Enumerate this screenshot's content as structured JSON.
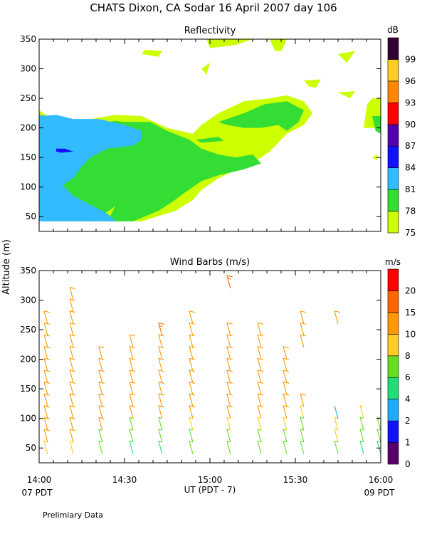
{
  "header": {
    "title": "CHATS Dixon, CA  Sodar  16 April 2007  day 106",
    "y_label": "Altitude (m)",
    "x_label": "UT  (PDT - 7)",
    "x_left_note": "07 PDT",
    "x_right_note": "09 PDT",
    "footer": "Prelimiary Data"
  },
  "chart_data": [
    {
      "type": "heatmap",
      "title": "Reflectivity",
      "legend_title": "dB",
      "x_ticks": [
        "14:00",
        "14:30",
        "15:00",
        "15:30",
        "16:00"
      ],
      "x_range_hours": [
        14.0,
        16.0
      ],
      "ylim": [
        25,
        350
      ],
      "y_ticks": [
        50,
        100,
        150,
        200,
        250,
        300,
        350
      ],
      "legend_levels": [
        75,
        78,
        81,
        84,
        87,
        90,
        93,
        96,
        99
      ],
      "legend_colors": [
        "#ccff00",
        "#33dd33",
        "#33bbff",
        "#1111ff",
        "#5500aa",
        "#ff0000",
        "#ff8800",
        "#ffcc22",
        "#330033"
      ],
      "regions": [
        {
          "level": 75,
          "points": [
            [
              14.0,
              230
            ],
            [
              14.1,
              210
            ],
            [
              14.3,
              215
            ],
            [
              14.45,
              222
            ],
            [
              14.6,
              220
            ],
            [
              14.75,
              200
            ],
            [
              14.9,
              190
            ],
            [
              14.95,
              205
            ],
            [
              15.05,
              225
            ],
            [
              15.2,
              245
            ],
            [
              15.35,
              250
            ],
            [
              15.45,
              255
            ],
            [
              15.55,
              245
            ],
            [
              15.6,
              225
            ],
            [
              15.55,
              205
            ],
            [
              15.45,
              190
            ],
            [
              15.4,
              175
            ],
            [
              15.35,
              160
            ],
            [
              15.3,
              150
            ],
            [
              15.2,
              135
            ],
            [
              15.05,
              115
            ],
            [
              14.95,
              95
            ],
            [
              14.9,
              78
            ],
            [
              14.8,
              60
            ],
            [
              14.6,
              42
            ],
            [
              14.0,
              42
            ]
          ]
        },
        {
          "level": 75,
          "points": [
            [
              14.6,
              325
            ],
            [
              14.7,
              320
            ],
            [
              14.72,
              330
            ],
            [
              14.62,
              332
            ]
          ]
        },
        {
          "level": 75,
          "points": [
            [
              14.95,
              300
            ],
            [
              14.98,
              290
            ],
            [
              15.0,
              310
            ]
          ]
        },
        {
          "level": 75,
          "points": [
            [
              14.98,
              350
            ],
            [
              15.25,
              350
            ],
            [
              15.15,
              340
            ],
            [
              15.0,
              335
            ]
          ]
        },
        {
          "level": 75,
          "points": [
            [
              15.35,
              350
            ],
            [
              15.45,
              350
            ],
            [
              15.42,
              330
            ],
            [
              15.38,
              330
            ]
          ]
        },
        {
          "level": 75,
          "points": [
            [
              15.55,
              280
            ],
            [
              15.65,
              282
            ],
            [
              15.62,
              268
            ],
            [
              15.58,
              270
            ]
          ]
        },
        {
          "level": 75,
          "points": [
            [
              15.75,
              325
            ],
            [
              15.85,
              330
            ],
            [
              15.8,
              310
            ]
          ]
        },
        {
          "level": 75,
          "points": [
            [
              15.75,
              260
            ],
            [
              15.85,
              262
            ],
            [
              15.82,
              250
            ]
          ]
        },
        {
          "level": 75,
          "points": [
            [
              15.9,
              200
            ],
            [
              16.0,
              200
            ],
            [
              16.0,
              250
            ],
            [
              15.95,
              250
            ],
            [
              15.92,
              240
            ]
          ]
        },
        {
          "level": 75,
          "points": [
            [
              15.95,
              150
            ],
            [
              15.98,
              155
            ],
            [
              15.98,
              145
            ]
          ]
        },
        {
          "level": 78,
          "points": [
            [
              14.0,
              222
            ],
            [
              14.1,
              205
            ],
            [
              14.3,
              205
            ],
            [
              14.45,
              212
            ],
            [
              14.6,
              205
            ],
            [
              14.65,
              190
            ],
            [
              14.7,
              175
            ],
            [
              14.62,
              150
            ],
            [
              14.55,
              110
            ],
            [
              14.5,
              80
            ],
            [
              14.42,
              62
            ],
            [
              14.3,
              42
            ],
            [
              14.0,
              42
            ]
          ]
        },
        {
          "level": 78,
          "points": [
            [
              14.5,
              210
            ],
            [
              14.65,
              210
            ],
            [
              14.75,
              195
            ],
            [
              14.88,
              180
            ],
            [
              14.95,
              165
            ],
            [
              15.05,
              155
            ],
            [
              15.15,
              150
            ],
            [
              15.25,
              155
            ],
            [
              15.3,
              140
            ],
            [
              15.2,
              130
            ],
            [
              15.05,
              120
            ],
            [
              14.95,
              110
            ],
            [
              14.85,
              90
            ],
            [
              14.78,
              75
            ],
            [
              14.7,
              60
            ],
            [
              14.55,
              42
            ],
            [
              14.4,
              42
            ],
            [
              14.45,
              70
            ],
            [
              14.5,
              100
            ],
            [
              14.55,
              150
            ]
          ]
        },
        {
          "level": 78,
          "points": [
            [
              15.05,
              210
            ],
            [
              15.2,
              225
            ],
            [
              15.32,
              240
            ],
            [
              15.45,
              245
            ],
            [
              15.55,
              230
            ],
            [
              15.52,
              210
            ],
            [
              15.45,
              195
            ],
            [
              15.4,
              205
            ],
            [
              15.3,
              200
            ],
            [
              15.2,
              200
            ],
            [
              15.1,
              205
            ]
          ]
        },
        {
          "level": 78,
          "points": [
            [
              14.92,
              180
            ],
            [
              15.05,
              185
            ],
            [
              15.08,
              178
            ],
            [
              14.95,
              175
            ]
          ]
        },
        {
          "level": 78,
          "points": [
            [
              15.95,
              220
            ],
            [
              16.0,
              220
            ],
            [
              16.0,
              190
            ],
            [
              15.97,
              195
            ]
          ]
        },
        {
          "level": 81,
          "points": [
            [
              14.0,
              220
            ],
            [
              14.1,
              210
            ],
            [
              14.15,
              205
            ],
            [
              14.25,
              200
            ],
            [
              14.3,
              185
            ],
            [
              14.25,
              170
            ],
            [
              14.15,
              160
            ],
            [
              14.05,
              145
            ],
            [
              14.0,
              120
            ],
            [
              14.0,
              42
            ],
            [
              14.05,
              42
            ],
            [
              14.1,
              70
            ],
            [
              14.12,
              100
            ],
            [
              14.2,
              115
            ],
            [
              14.25,
              135
            ],
            [
              14.3,
              150
            ],
            [
              14.4,
              165
            ],
            [
              14.55,
              170
            ],
            [
              14.6,
              180
            ],
            [
              14.6,
              195
            ],
            [
              14.5,
              205
            ],
            [
              14.35,
              215
            ],
            [
              14.2,
              215
            ],
            [
              14.1,
              222
            ]
          ]
        },
        {
          "level": 81,
          "points": [
            [
              14.0,
              222
            ],
            [
              14.15,
              215
            ],
            [
              14.35,
              210
            ],
            [
              14.45,
              200
            ],
            [
              14.47,
              185
            ],
            [
              14.4,
              175
            ],
            [
              14.3,
              165
            ],
            [
              14.2,
              155
            ],
            [
              14.15,
              140
            ],
            [
              14.1,
              120
            ],
            [
              14.15,
              100
            ],
            [
              14.2,
              85
            ],
            [
              14.3,
              70
            ],
            [
              14.4,
              55
            ],
            [
              14.45,
              42
            ],
            [
              14.0,
              42
            ]
          ]
        },
        {
          "level": 84,
          "points": [
            [
              14.1,
              165
            ],
            [
              14.15,
              165
            ],
            [
              14.2,
              160
            ],
            [
              14.13,
              158
            ],
            [
              14.1,
              160
            ]
          ]
        }
      ]
    },
    {
      "type": "scatter",
      "title": "Wind Barbs (m/s)",
      "legend_title": "m/s",
      "x_ticks": [
        "14:00",
        "14:30",
        "15:00",
        "15:30",
        "16:00"
      ],
      "x_range_hours": [
        14.0,
        16.0
      ],
      "ylim": [
        25,
        350
      ],
      "y_ticks": [
        50,
        100,
        150,
        200,
        250,
        300,
        350
      ],
      "legend_levels": [
        0,
        1,
        2,
        4,
        6,
        8,
        10,
        15,
        20
      ],
      "legend_colors": [
        "#550066",
        "#1111ff",
        "#22aaff",
        "#22dd77",
        "#66dd22",
        "#ffcc22",
        "#ff9900",
        "#ff6600",
        "#ff0000"
      ],
      "columns": [
        {
          "t": 14.05,
          "heights": [
            40,
            60,
            80,
            100,
            120,
            140,
            160,
            180,
            200,
            220,
            240,
            260
          ],
          "speeds": [
            9,
            10,
            11,
            11,
            12,
            11,
            12,
            11,
            11,
            12,
            11,
            11
          ]
        },
        {
          "t": 14.2,
          "heights": [
            40,
            60,
            80,
            100,
            120,
            140,
            160,
            180,
            200,
            220,
            240,
            260,
            280,
            300
          ],
          "speeds": [
            9,
            10,
            11,
            11,
            12,
            12,
            12,
            12,
            12,
            12,
            11,
            12,
            12,
            11
          ]
        },
        {
          "t": 14.37,
          "heights": [
            40,
            60,
            80,
            100,
            120,
            140,
            160,
            180,
            200
          ],
          "speeds": [
            6,
            7,
            11,
            12,
            12,
            12,
            12,
            12,
            12
          ]
        },
        {
          "t": 14.55,
          "heights": [
            40,
            60,
            80,
            100,
            120,
            140,
            160,
            180,
            200,
            220
          ],
          "speeds": [
            5,
            6,
            7,
            12,
            12,
            12,
            12,
            12,
            12,
            12
          ]
        },
        {
          "t": 14.72,
          "heights": [
            40,
            60,
            80,
            100,
            120,
            140,
            160,
            180,
            200,
            220,
            240
          ],
          "speeds": [
            5,
            6,
            7,
            12,
            12,
            12,
            12,
            12,
            12,
            13,
            17
          ]
        },
        {
          "t": 14.9,
          "heights": [
            40,
            60,
            80,
            100,
            120,
            140,
            160,
            180,
            200,
            220,
            240,
            260
          ],
          "speeds": [
            6,
            7,
            8,
            11,
            12,
            12,
            12,
            12,
            12,
            12,
            13,
            14
          ]
        },
        {
          "t": 15.12,
          "heights": [
            40,
            60,
            80,
            100,
            120,
            140,
            160,
            180,
            200,
            220,
            240,
            320
          ],
          "speeds": [
            6,
            7,
            8,
            11,
            12,
            12,
            12,
            12,
            12,
            12,
            12,
            18
          ]
        },
        {
          "t": 15.3,
          "heights": [
            40,
            60,
            80,
            100,
            120,
            140,
            160,
            180,
            200,
            220,
            240
          ],
          "speeds": [
            6,
            7,
            8,
            11,
            11,
            12,
            12,
            12,
            12,
            12,
            12
          ]
        },
        {
          "t": 15.45,
          "heights": [
            40,
            60,
            80,
            100,
            120,
            140,
            160,
            180,
            200
          ],
          "speeds": [
            6,
            7,
            8,
            11,
            11,
            12,
            12,
            12,
            12
          ]
        },
        {
          "t": 15.55,
          "heights": [
            40,
            60,
            80,
            100,
            120,
            220,
            240,
            260
          ],
          "speeds": [
            6,
            6,
            7,
            8,
            10,
            11,
            12,
            12
          ]
        },
        {
          "t": 15.75,
          "heights": [
            40,
            60,
            80,
            100,
            260
          ],
          "speeds": [
            6,
            8,
            8,
            3,
            12
          ]
        },
        {
          "t": 15.9,
          "heights": [
            40,
            60,
            80,
            100
          ],
          "speeds": [
            5,
            6,
            7,
            9
          ]
        },
        {
          "t": 16.0,
          "heights": [
            40,
            60,
            80
          ],
          "speeds": [
            5,
            6,
            7
          ]
        }
      ]
    }
  ]
}
